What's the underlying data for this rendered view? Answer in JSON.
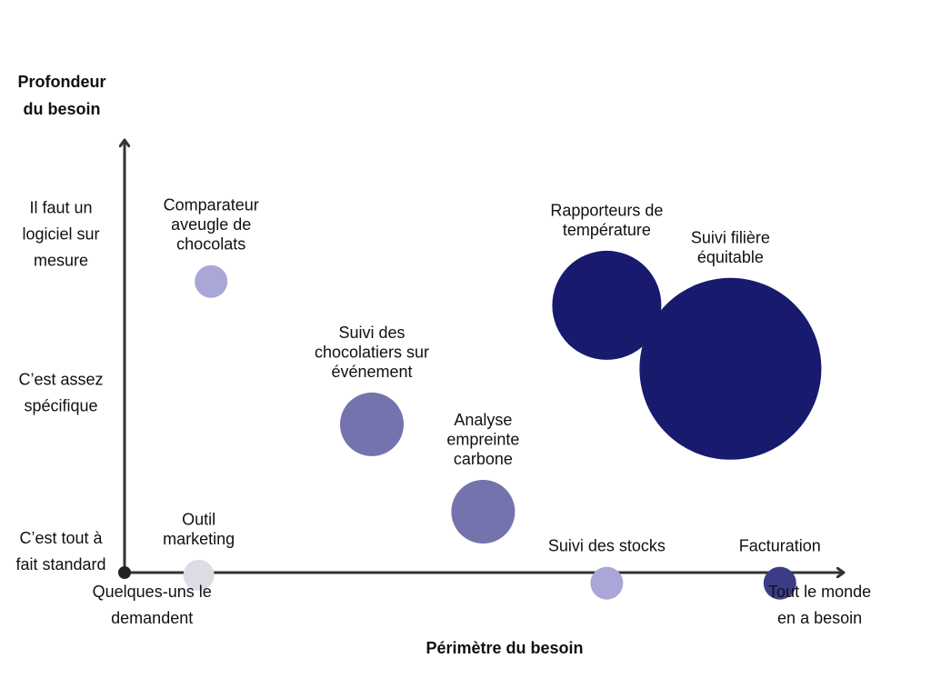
{
  "chart_data": {
    "type": "scatter",
    "subtype": "bubble",
    "ylabel": [
      "Profondeur",
      "du besoin"
    ],
    "xlabel": "Périmètre du besoin",
    "yticks": [
      {
        "value": 3,
        "lines": [
          "Il faut un",
          "logiciel sur",
          "mesure"
        ]
      },
      {
        "value": 2,
        "lines": [
          "C’est assez",
          "spécifique"
        ]
      },
      {
        "value": 1,
        "lines": [
          "C’est tout à",
          "fait standard"
        ]
      }
    ],
    "xticks": [
      {
        "value": 0.2,
        "lines": [
          "Quelques-uns le",
          "demandent"
        ]
      },
      {
        "value": 5.6,
        "lines": [
          "Tout le monde",
          "en a besoin"
        ]
      }
    ],
    "xlim": [
      0,
      6
    ],
    "ylim": [
      0.5,
      3.5
    ],
    "grid": false,
    "bubbles": [
      {
        "name": [
          "Comparateur",
          "aveugle de",
          "chocolats"
        ],
        "x": 0.7,
        "y": 2.7,
        "size": 18,
        "color": "#a9a7d8"
      },
      {
        "name": [
          "Suivi des",
          "chocolatiers sur",
          "événement"
        ],
        "x": 2.0,
        "y": 1.8,
        "size": 35,
        "color": "#7473ad"
      },
      {
        "name": [
          "Analyse",
          "empreinte",
          "carbone"
        ],
        "x": 2.9,
        "y": 1.25,
        "size": 35,
        "color": "#7473ad"
      },
      {
        "name": [
          "Rapporteurs de",
          "température"
        ],
        "x": 3.9,
        "y": 2.55,
        "size": 60,
        "color": "#181a6e"
      },
      {
        "name": [
          "Suivi filière",
          "équitable"
        ],
        "x": 4.9,
        "y": 2.15,
        "size": 100,
        "color": "#181a6e"
      },
      {
        "name": [
          "Outil",
          "marketing"
        ],
        "x": 0.6,
        "y": 0.85,
        "size": 17,
        "color": "#dcdde4"
      },
      {
        "name": [
          "Suivi des stocks"
        ],
        "x": 3.9,
        "y": 0.8,
        "size": 18,
        "color": "#a9a7d8"
      },
      {
        "name": [
          "Facturation"
        ],
        "x": 5.3,
        "y": 0.8,
        "size": 18,
        "color": "#3c3d86"
      }
    ]
  }
}
